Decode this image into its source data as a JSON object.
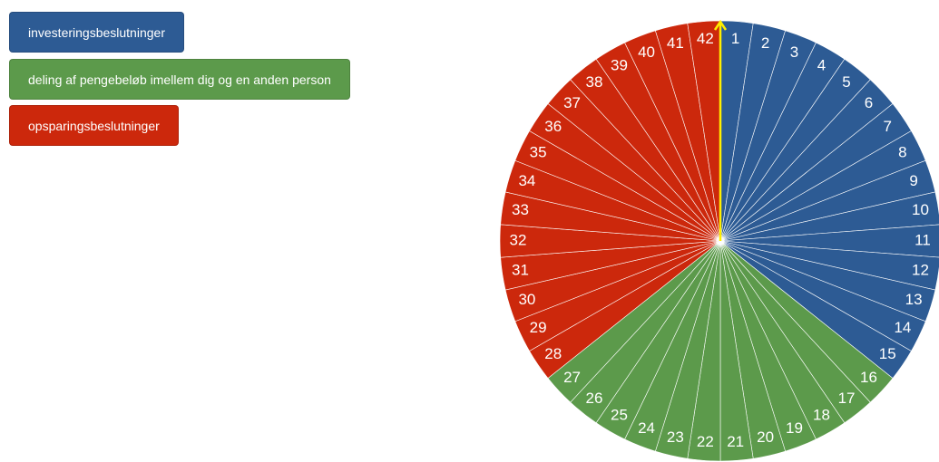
{
  "buttons": [
    {
      "label": "investeringsbeslutninger",
      "color": "#2d5b94"
    },
    {
      "label": "deling af pengebeløb imellem dig og en anden person",
      "color": "#5c9a4b"
    },
    {
      "label": "opsparingsbeslutninger",
      "color": "#cc280c"
    }
  ],
  "wheel": {
    "pointer_color": "#ffee00",
    "groups": [
      {
        "color": "#2d5b94",
        "segments": [
          "1",
          "2",
          "3",
          "4",
          "5",
          "6",
          "7",
          "8",
          "9",
          "10",
          "11",
          "12",
          "13",
          "14",
          "15"
        ]
      },
      {
        "color": "#5c9a4b",
        "segments": [
          "16",
          "17",
          "18",
          "19",
          "20",
          "21",
          "22",
          "23",
          "24",
          "25",
          "26",
          "27"
        ]
      },
      {
        "color": "#cc280c",
        "segments": [
          "28",
          "29",
          "30",
          "31",
          "32",
          "33",
          "34",
          "35",
          "36",
          "37",
          "38",
          "39",
          "40",
          "41",
          "42"
        ]
      }
    ]
  }
}
